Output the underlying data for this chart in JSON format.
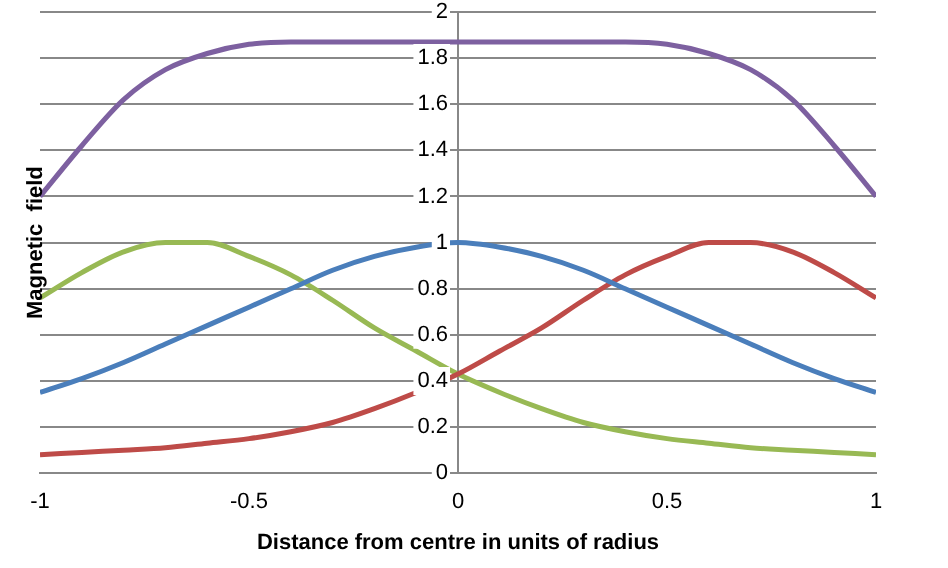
{
  "chart_data": {
    "type": "line",
    "xlabel": "Distance from centre in units of radius",
    "ylabel": "Magnetic  field",
    "x": [
      -1,
      -0.9,
      -0.8,
      -0.7,
      -0.6,
      -0.5,
      -0.4,
      -0.3,
      -0.2,
      -0.1,
      0,
      0.1,
      0.2,
      0.3,
      0.4,
      0.5,
      0.6,
      0.7,
      0.8,
      0.9,
      1
    ],
    "series": [
      {
        "color": "#7d60a0",
        "values": [
          1.2,
          1.42,
          1.62,
          1.75,
          1.82,
          1.86,
          1.87,
          1.87,
          1.87,
          1.87,
          1.87,
          1.87,
          1.87,
          1.87,
          1.87,
          1.86,
          1.82,
          1.75,
          1.62,
          1.42,
          1.2
        ]
      },
      {
        "color": "#4a7ebb",
        "values": [
          0.35,
          0.41,
          0.48,
          0.56,
          0.64,
          0.72,
          0.8,
          0.88,
          0.94,
          0.98,
          1.0,
          0.98,
          0.94,
          0.88,
          0.8,
          0.72,
          0.64,
          0.56,
          0.48,
          0.41,
          0.35
        ]
      },
      {
        "color": "#be4b48",
        "values": [
          0.08,
          0.09,
          0.1,
          0.11,
          0.13,
          0.15,
          0.18,
          0.22,
          0.28,
          0.35,
          0.43,
          0.53,
          0.63,
          0.75,
          0.86,
          0.94,
          1.0,
          1.0,
          0.96,
          0.87,
          0.76
        ]
      },
      {
        "color": "#98b954",
        "values": [
          0.76,
          0.87,
          0.96,
          1.0,
          1.0,
          0.94,
          0.86,
          0.75,
          0.63,
          0.53,
          0.43,
          0.35,
          0.28,
          0.22,
          0.18,
          0.15,
          0.13,
          0.11,
          0.1,
          0.09,
          0.08
        ]
      }
    ],
    "xlim": [
      -1,
      1
    ],
    "xticks": [
      -1,
      -0.5,
      0,
      0.5,
      1
    ],
    "ylim": [
      0,
      2
    ],
    "yticks": [
      0,
      0.2,
      0.4,
      0.6,
      0.8,
      1,
      1.2,
      1.4,
      1.6,
      1.8,
      2
    ],
    "grid": "y",
    "legend": false,
    "marker": "none",
    "line_style": "solid"
  }
}
